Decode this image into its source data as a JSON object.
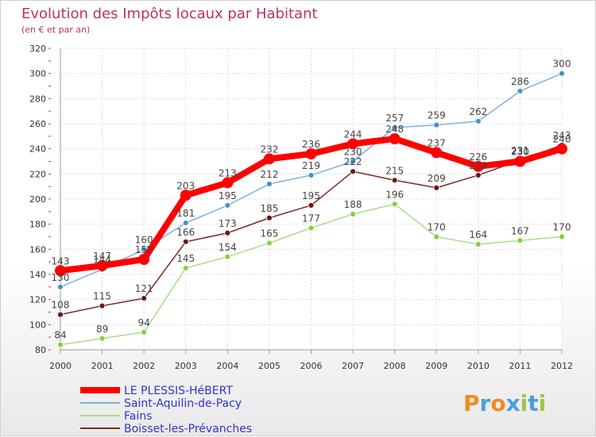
{
  "chart_data": {
    "type": "line",
    "title": "Evolution des Impôts locaux par Habitant",
    "subtitle": "(en € et par an)",
    "x": [
      "2000",
      "2001",
      "2002",
      "2003",
      "2004",
      "2005",
      "2006",
      "2007",
      "2008",
      "2009",
      "2010",
      "2011",
      "2012"
    ],
    "ylim": [
      80,
      320
    ],
    "yticks": [
      80,
      100,
      120,
      140,
      160,
      180,
      200,
      220,
      240,
      260,
      280,
      300,
      320
    ],
    "grid": true,
    "legend_position": "bottom-left",
    "series": [
      {
        "name": "LE PLESSIS-HéBERT",
        "color": "#ff0000",
        "role": "main",
        "values": [
          143,
          147,
          152,
          203,
          213,
          232,
          236,
          244,
          248,
          237,
          226,
          230,
          240
        ],
        "labels": [
          "143",
          "147",
          "152",
          "203",
          "213",
          "232",
          "236",
          "244",
          "248",
          "237",
          "226",
          "230",
          "240"
        ]
      },
      {
        "name": "Saint-Aquilin-de-Pacy",
        "color": "#7fb0d8",
        "marker": "#4a90d0",
        "values": [
          130,
          144,
          160,
          181,
          195,
          212,
          219,
          230,
          257,
          259,
          262,
          286,
          300
        ],
        "labels": [
          "130",
          "144",
          "160",
          "181",
          "195",
          "212",
          "219",
          "230",
          "257",
          "259",
          "262",
          "286",
          "300"
        ]
      },
      {
        "name": "Fains",
        "color": "#a8dd88",
        "marker": "#88d040",
        "values": [
          84,
          89,
          94,
          145,
          154,
          165,
          177,
          188,
          196,
          170,
          164,
          167,
          170
        ],
        "labels": [
          "84",
          "89",
          "94",
          "145",
          "154",
          "165",
          "177",
          "188",
          "196",
          "170",
          "164",
          "167",
          "170"
        ]
      },
      {
        "name": "Boisset-les-Prévanches",
        "color": "#7a2a2a",
        "marker": "#6a1818",
        "values": [
          108,
          115,
          121,
          166,
          173,
          185,
          195,
          222,
          215,
          209,
          219,
          231,
          243
        ],
        "labels": [
          "108",
          "115",
          "121",
          "166",
          "173",
          "185",
          "195",
          "222",
          "215",
          "209",
          "219",
          "231",
          "243"
        ]
      }
    ]
  },
  "logo": {
    "text": "Proxiti",
    "letters": [
      "P",
      "r",
      "o",
      "x",
      "i",
      "t",
      "i"
    ],
    "colors": [
      "#f08c1e",
      "#4aa0d8",
      "#f08c1e",
      "#4aa0d8",
      "#a0c840",
      "#4aa0d8",
      "#a0c840"
    ]
  }
}
